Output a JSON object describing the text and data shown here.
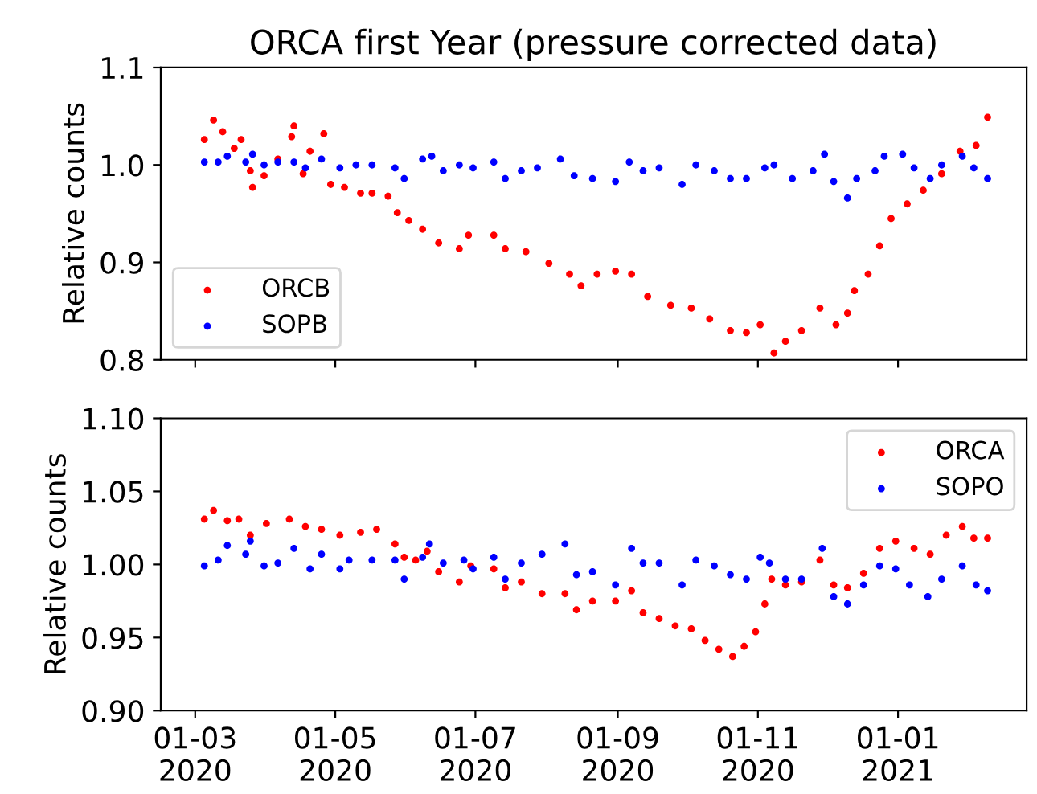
{
  "chart_data": [
    {
      "type": "scatter",
      "title": "ORCA first Year (pressure corrected data)",
      "ylabel": "Relative counts",
      "ylim": [
        0.8,
        1.1
      ],
      "yticks": [
        {
          "value": 0.8,
          "label": "0.8"
        },
        {
          "value": 0.9,
          "label": "0.9"
        },
        {
          "value": 1.0,
          "label": "1.0"
        },
        {
          "value": 1.1,
          "label": "1.1"
        }
      ],
      "xlim": [
        "2020-02-15",
        "2021-02-26"
      ],
      "xticks": [
        {
          "value": "2020-03-01",
          "label": null
        },
        {
          "value": "2020-05-01",
          "label": null
        },
        {
          "value": "2020-07-01",
          "label": null
        },
        {
          "value": "2020-09-01",
          "label": null
        },
        {
          "value": "2020-11-01",
          "label": null
        },
        {
          "value": "2021-01-01",
          "label": null
        }
      ],
      "tick_labels": "y",
      "legend": "lower left",
      "grid": false,
      "marker": "circle",
      "series": [
        {
          "name": "ORCB",
          "color": "#ff0000",
          "x": [
            "2020-03-05",
            "2020-03-09",
            "2020-03-13",
            "2020-03-18",
            "2020-03-21",
            "2020-03-25",
            "2020-03-26",
            "2020-03-31",
            "2020-04-06",
            "2020-04-12",
            "2020-04-13",
            "2020-04-17",
            "2020-04-20",
            "2020-04-26",
            "2020-04-29",
            "2020-05-05",
            "2020-05-12",
            "2020-05-17",
            "2020-05-24",
            "2020-05-28",
            "2020-06-02",
            "2020-06-08",
            "2020-06-15",
            "2020-06-24",
            "2020-06-28",
            "2020-07-09",
            "2020-07-14",
            "2020-07-23",
            "2020-08-02",
            "2020-08-11",
            "2020-08-16",
            "2020-08-23",
            "2020-08-31",
            "2020-09-07",
            "2020-09-14",
            "2020-09-24",
            "2020-10-03",
            "2020-10-11",
            "2020-10-20",
            "2020-10-27",
            "2020-11-02",
            "2020-11-08",
            "2020-11-13",
            "2020-11-20",
            "2020-11-28",
            "2020-12-05",
            "2020-12-10",
            "2020-12-13",
            "2020-12-19",
            "2020-12-24",
            "2020-12-29",
            "2021-01-05",
            "2021-01-12",
            "2021-01-20",
            "2021-01-28",
            "2021-02-04",
            "2021-02-09"
          ],
          "values": [
            1.026,
            1.046,
            1.034,
            1.017,
            1.026,
            0.994,
            0.977,
            0.989,
            1.006,
            1.029,
            1.04,
            0.991,
            1.014,
            1.032,
            0.98,
            0.977,
            0.971,
            0.971,
            0.968,
            0.951,
            0.943,
            0.934,
            0.92,
            0.914,
            0.928,
            0.928,
            0.914,
            0.911,
            0.899,
            0.888,
            0.876,
            0.888,
            0.891,
            0.888,
            0.865,
            0.856,
            0.853,
            0.842,
            0.83,
            0.828,
            0.836,
            0.807,
            0.819,
            0.83,
            0.853,
            0.836,
            0.848,
            0.871,
            0.888,
            0.917,
            0.945,
            0.96,
            0.974,
            0.991,
            1.014,
            1.02,
            1.049
          ]
        },
        {
          "name": "SOPB",
          "color": "#0000ff",
          "x": [
            "2020-03-05",
            "2020-03-11",
            "2020-03-15",
            "2020-03-23",
            "2020-03-26",
            "2020-03-31",
            "2020-04-06",
            "2020-04-13",
            "2020-04-18",
            "2020-04-25",
            "2020-05-03",
            "2020-05-10",
            "2020-05-17",
            "2020-05-27",
            "2020-05-31",
            "2020-06-08",
            "2020-06-12",
            "2020-06-17",
            "2020-06-24",
            "2020-06-30",
            "2020-07-09",
            "2020-07-14",
            "2020-07-21",
            "2020-07-28",
            "2020-08-07",
            "2020-08-13",
            "2020-08-21",
            "2020-08-31",
            "2020-09-06",
            "2020-09-12",
            "2020-09-19",
            "2020-09-29",
            "2020-10-05",
            "2020-10-13",
            "2020-10-20",
            "2020-10-27",
            "2020-11-04",
            "2020-11-08",
            "2020-11-16",
            "2020-11-25",
            "2020-11-30",
            "2020-12-04",
            "2020-12-10",
            "2020-12-14",
            "2020-12-22",
            "2020-12-26",
            "2021-01-03",
            "2021-01-08",
            "2021-01-15",
            "2021-01-20",
            "2021-01-29",
            "2021-02-03",
            "2021-02-09"
          ],
          "values": [
            1.003,
            1.003,
            1.009,
            1.003,
            1.011,
            1.0,
            1.003,
            1.003,
            0.997,
            1.006,
            0.997,
            1.0,
            1.0,
            0.997,
            0.986,
            1.006,
            1.009,
            0.994,
            1.0,
            0.997,
            1.003,
            0.986,
            0.994,
            0.997,
            1.006,
            0.989,
            0.986,
            0.983,
            1.003,
            0.994,
            0.997,
            0.98,
            1.0,
            0.994,
            0.986,
            0.986,
            0.997,
            1.0,
            0.986,
            0.994,
            1.011,
            0.983,
            0.966,
            0.986,
            0.994,
            1.009,
            1.011,
            0.997,
            0.986,
            1.0,
            1.009,
            0.997,
            0.986
          ]
        }
      ]
    },
    {
      "type": "scatter",
      "ylabel": "Relative counts",
      "ylim": [
        0.9,
        1.1
      ],
      "yticks": [
        {
          "value": 0.9,
          "label": "0.90"
        },
        {
          "value": 0.95,
          "label": "0.95"
        },
        {
          "value": 1.0,
          "label": "1.00"
        },
        {
          "value": 1.05,
          "label": "1.05"
        },
        {
          "value": 1.1,
          "label": "1.10"
        }
      ],
      "xlim": [
        "2020-02-15",
        "2021-02-26"
      ],
      "xticks": [
        {
          "value": "2020-03-01",
          "label": "01-03\n2020"
        },
        {
          "value": "2020-05-01",
          "label": "01-05\n2020"
        },
        {
          "value": "2020-07-01",
          "label": "01-07\n2020"
        },
        {
          "value": "2020-09-01",
          "label": "01-09\n2020"
        },
        {
          "value": "2020-11-01",
          "label": "01-11\n2020"
        },
        {
          "value": "2021-01-01",
          "label": "01-01\n2021"
        }
      ],
      "legend": "upper right",
      "grid": false,
      "marker": "circle",
      "series": [
        {
          "name": "ORCA",
          "color": "#ff0000",
          "x": [
            "2020-03-05",
            "2020-03-09",
            "2020-03-15",
            "2020-03-20",
            "2020-03-25",
            "2020-04-01",
            "2020-04-11",
            "2020-04-18",
            "2020-04-25",
            "2020-05-03",
            "2020-05-12",
            "2020-05-19",
            "2020-05-27",
            "2020-05-31",
            "2020-06-05",
            "2020-06-10",
            "2020-06-15",
            "2020-06-24",
            "2020-06-29",
            "2020-07-09",
            "2020-07-14",
            "2020-07-21",
            "2020-07-30",
            "2020-08-09",
            "2020-08-14",
            "2020-08-21",
            "2020-08-31",
            "2020-09-07",
            "2020-09-12",
            "2020-09-19",
            "2020-09-26",
            "2020-10-03",
            "2020-10-09",
            "2020-10-15",
            "2020-10-21",
            "2020-10-26",
            "2020-10-31",
            "2020-11-04",
            "2020-11-07",
            "2020-11-13",
            "2020-11-20",
            "2020-11-28",
            "2020-12-04",
            "2020-12-10",
            "2020-12-17",
            "2020-12-24",
            "2020-12-31",
            "2021-01-08",
            "2021-01-15",
            "2021-01-22",
            "2021-01-29",
            "2021-02-03",
            "2021-02-09"
          ],
          "values": [
            1.031,
            1.037,
            1.03,
            1.031,
            1.02,
            1.028,
            1.031,
            1.026,
            1.024,
            1.02,
            1.022,
            1.024,
            1.014,
            1.005,
            1.003,
            1.009,
            0.995,
            0.988,
            0.999,
            0.997,
            0.984,
            0.988,
            0.98,
            0.98,
            0.969,
            0.975,
            0.975,
            0.982,
            0.967,
            0.963,
            0.958,
            0.956,
            0.948,
            0.942,
            0.937,
            0.944,
            0.954,
            0.973,
            0.99,
            0.986,
            0.988,
            1.003,
            0.986,
            0.984,
            0.994,
            1.011,
            1.016,
            1.011,
            1.007,
            1.02,
            1.026,
            1.018,
            1.018
          ]
        },
        {
          "name": "SOPO",
          "color": "#0000ff",
          "x": [
            "2020-03-05",
            "2020-03-11",
            "2020-03-15",
            "2020-03-23",
            "2020-03-25",
            "2020-03-31",
            "2020-04-06",
            "2020-04-13",
            "2020-04-20",
            "2020-04-25",
            "2020-05-03",
            "2020-05-07",
            "2020-05-17",
            "2020-05-27",
            "2020-05-31",
            "2020-06-08",
            "2020-06-11",
            "2020-06-17",
            "2020-06-26",
            "2020-06-30",
            "2020-07-09",
            "2020-07-14",
            "2020-07-21",
            "2020-07-30",
            "2020-08-09",
            "2020-08-14",
            "2020-08-21",
            "2020-08-31",
            "2020-09-07",
            "2020-09-12",
            "2020-09-19",
            "2020-09-29",
            "2020-10-05",
            "2020-10-13",
            "2020-10-20",
            "2020-10-27",
            "2020-11-02",
            "2020-11-06",
            "2020-11-13",
            "2020-11-20",
            "2020-11-29",
            "2020-12-04",
            "2020-12-10",
            "2020-12-17",
            "2020-12-24",
            "2020-12-31",
            "2021-01-06",
            "2021-01-14",
            "2021-01-20",
            "2021-01-29",
            "2021-02-04",
            "2021-02-09"
          ],
          "values": [
            0.999,
            1.003,
            1.013,
            1.007,
            1.016,
            0.999,
            1.001,
            1.011,
            0.997,
            1.007,
            0.997,
            1.003,
            1.003,
            1.003,
            0.99,
            1.005,
            1.014,
            1.001,
            1.003,
            0.997,
            1.005,
            0.99,
            1.001,
            1.007,
            1.014,
            0.993,
            0.995,
            0.986,
            1.011,
            1.001,
            1.001,
            0.986,
            1.003,
            0.999,
            0.993,
            0.99,
            1.005,
            1.001,
            0.99,
            0.99,
            1.011,
            0.978,
            0.973,
            0.986,
            0.999,
            0.997,
            0.986,
            0.978,
            0.99,
            0.999,
            0.986,
            0.982
          ]
        }
      ]
    }
  ]
}
